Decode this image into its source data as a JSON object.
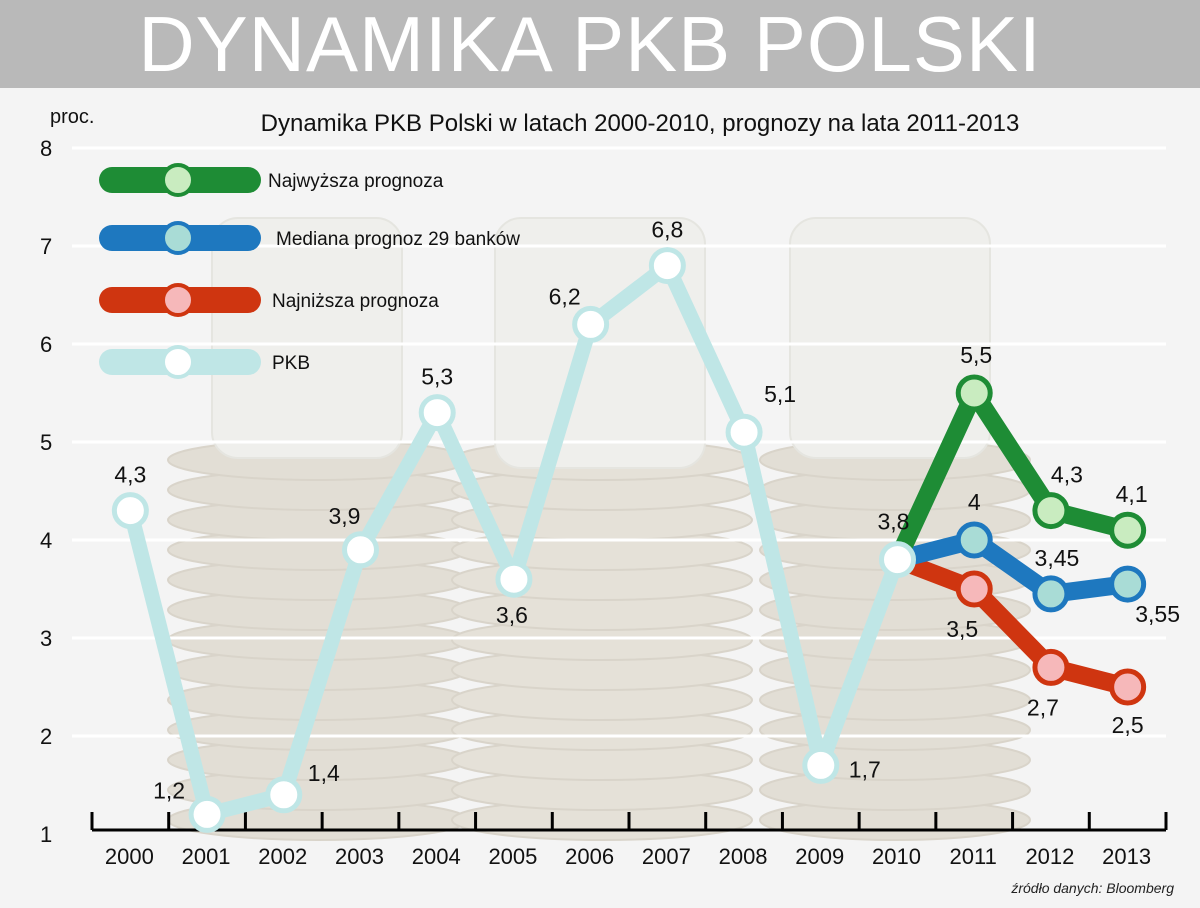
{
  "banner": {
    "title": "DYNAMIKA PKB POLSKI"
  },
  "source": "źródło danych: Bloomberg",
  "colors": {
    "pkb": "#bfe6e6",
    "pkb_point_fill": "#ffffff",
    "high": "#1e8c35",
    "high_point_fill": "#c9ecc0",
    "median": "#1e78bf",
    "median_point_fill": "#a9dcd6",
    "low": "#cf3510",
    "low_point_fill": "#f6b8ba",
    "grid": "#ffffff"
  },
  "chart_data": {
    "type": "line",
    "title": "Dynamika PKB Polski w latach 2000-2010, prognozy na lata 2011-2013",
    "ylabel": "proc.",
    "xlabel": "",
    "ylim": [
      1,
      8
    ],
    "yticks": [
      "1",
      "2",
      "3",
      "4",
      "5",
      "6",
      "7",
      "8"
    ],
    "categories": [
      "2000",
      "2001",
      "2002",
      "2003",
      "2004",
      "2005",
      "2006",
      "2007",
      "2008",
      "2009",
      "2010",
      "2011",
      "2012",
      "2013"
    ],
    "grid": true,
    "legend_position": "top-left",
    "series": [
      {
        "name": "Najwyższa prognoza",
        "key": "high",
        "x": [
          "2010",
          "2011",
          "2012",
          "2013"
        ],
        "values": [
          3.8,
          5.5,
          4.3,
          4.1
        ],
        "labels": [
          "",
          "5,5",
          "4,3",
          "4,1"
        ]
      },
      {
        "name": "Mediana prognoz 29 banków",
        "key": "median",
        "x": [
          "2010",
          "2011",
          "2012",
          "2013"
        ],
        "values": [
          3.8,
          4.0,
          3.45,
          3.55
        ],
        "labels": [
          "",
          "4",
          "3,45",
          "3,55"
        ]
      },
      {
        "name": "Najniższa prognoza",
        "key": "low",
        "x": [
          "2010",
          "2011",
          "2012",
          "2013"
        ],
        "values": [
          3.8,
          3.5,
          2.7,
          2.5
        ],
        "labels": [
          "",
          "3,5",
          "2,7",
          "2,5"
        ]
      },
      {
        "name": "PKB",
        "key": "pkb",
        "x": [
          "2000",
          "2001",
          "2002",
          "2003",
          "2004",
          "2005",
          "2006",
          "2007",
          "2008",
          "2009",
          "2010"
        ],
        "values": [
          4.3,
          1.2,
          1.4,
          3.9,
          5.3,
          3.6,
          6.2,
          6.8,
          5.1,
          1.7,
          3.8
        ],
        "labels": [
          "4,3",
          "1,2",
          "1,4",
          "3,9",
          "5,3",
          "3,6",
          "6,2",
          "6,8",
          "5,1",
          "1,7",
          "3,8"
        ]
      }
    ]
  }
}
